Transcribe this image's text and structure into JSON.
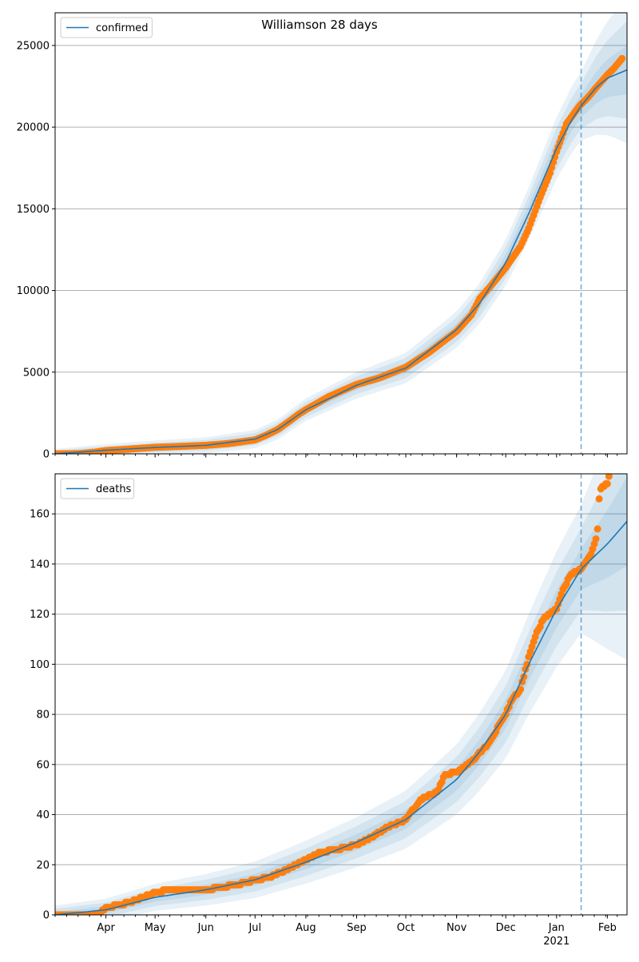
{
  "figure": {
    "title": "Williamson 28 days",
    "forecast_date": "2021-01-16",
    "colors": {
      "model": "#1f77b4",
      "observed": "#ff7f0e",
      "band": "#1f77b4",
      "grid": "#b0b0b0"
    },
    "x_axis": {
      "range": [
        "2020-03-01",
        "2021-02-13"
      ],
      "month_labels": [
        {
          "date": "2020-04-01",
          "label": "Apr"
        },
        {
          "date": "2020-05-01",
          "label": "May"
        },
        {
          "date": "2020-06-01",
          "label": "Jun"
        },
        {
          "date": "2020-07-01",
          "label": "Jul"
        },
        {
          "date": "2020-08-01",
          "label": "Aug"
        },
        {
          "date": "2020-09-01",
          "label": "Sep"
        },
        {
          "date": "2020-10-01",
          "label": "Oct"
        },
        {
          "date": "2020-11-01",
          "label": "Nov"
        },
        {
          "date": "2020-12-01",
          "label": "Dec"
        },
        {
          "date": "2021-01-01",
          "label": "Jan"
        },
        {
          "date": "2021-02-01",
          "label": "Feb"
        }
      ],
      "year_label": {
        "date": "2021-01-01",
        "label": "2021"
      }
    }
  },
  "chart_data": [
    {
      "type": "line",
      "legend": "confirmed",
      "legend_position": "top-left",
      "grid": "horizontal",
      "ylim": [
        0,
        27000
      ],
      "yticks": [
        0,
        5000,
        10000,
        15000,
        20000,
        25000
      ],
      "band_widths": [
        0.025,
        0.05,
        0.075
      ],
      "observed": [
        [
          "2020-03-01",
          0
        ],
        [
          "2020-03-15",
          10
        ],
        [
          "2020-03-25",
          100
        ],
        [
          "2020-04-01",
          200
        ],
        [
          "2020-04-15",
          290
        ],
        [
          "2020-05-01",
          400
        ],
        [
          "2020-05-15",
          450
        ],
        [
          "2020-06-01",
          520
        ],
        [
          "2020-06-15",
          630
        ],
        [
          "2020-07-01",
          850
        ],
        [
          "2020-07-08",
          1150
        ],
        [
          "2020-07-15",
          1500
        ],
        [
          "2020-07-22",
          2000
        ],
        [
          "2020-07-28",
          2450
        ],
        [
          "2020-08-01",
          2700
        ],
        [
          "2020-08-08",
          3100
        ],
        [
          "2020-08-15",
          3500
        ],
        [
          "2020-09-01",
          4250
        ],
        [
          "2020-09-15",
          4650
        ],
        [
          "2020-10-01",
          5300
        ],
        [
          "2020-10-15",
          6200
        ],
        [
          "2020-11-01",
          7500
        ],
        [
          "2020-11-10",
          8500
        ],
        [
          "2020-11-15",
          9500
        ],
        [
          "2020-11-22",
          10300
        ],
        [
          "2020-12-01",
          11400
        ],
        [
          "2020-12-10",
          12700
        ],
        [
          "2020-12-15",
          13800
        ],
        [
          "2020-12-22",
          15700
        ],
        [
          "2020-12-28",
          17200
        ],
        [
          "2021-01-01",
          18500
        ],
        [
          "2021-01-07",
          20200
        ],
        [
          "2021-01-15",
          21300
        ],
        [
          "2021-01-20",
          21800
        ],
        [
          "2021-01-25",
          22400
        ],
        [
          "2021-02-01",
          23200
        ],
        [
          "2021-02-05",
          23600
        ],
        [
          "2021-02-10",
          24200
        ]
      ],
      "model": [
        [
          "2020-03-01",
          0
        ],
        [
          "2020-04-01",
          220
        ],
        [
          "2020-05-01",
          390
        ],
        [
          "2020-06-01",
          520
        ],
        [
          "2020-07-01",
          900
        ],
        [
          "2020-07-15",
          1500
        ],
        [
          "2020-08-01",
          2700
        ],
        [
          "2020-09-01",
          4200
        ],
        [
          "2020-10-01",
          5250
        ],
        [
          "2020-11-01",
          7600
        ],
        [
          "2020-11-15",
          9200
        ],
        [
          "2020-12-01",
          11700
        ],
        [
          "2020-12-15",
          14700
        ],
        [
          "2021-01-01",
          18700
        ],
        [
          "2021-01-10",
          20400
        ],
        [
          "2021-01-16",
          21300
        ],
        [
          "2021-01-25",
          22400
        ],
        [
          "2021-02-01",
          23000
        ],
        [
          "2021-02-13",
          23500
        ]
      ]
    },
    {
      "type": "line",
      "legend": "deaths",
      "legend_position": "top-left",
      "grid": "horizontal",
      "ylim": [
        0,
        176
      ],
      "yticks": [
        0,
        20,
        40,
        60,
        80,
        100,
        120,
        140,
        160
      ],
      "band_widths": [
        0.045,
        0.09,
        0.14
      ],
      "observed": [
        [
          "2020-03-01",
          0
        ],
        [
          "2020-03-28",
          0
        ],
        [
          "2020-04-01",
          3
        ],
        [
          "2020-04-10",
          4
        ],
        [
          "2020-04-20",
          6
        ],
        [
          "2020-05-01",
          9
        ],
        [
          "2020-05-10",
          10
        ],
        [
          "2020-06-01",
          10
        ],
        [
          "2020-06-10",
          11
        ],
        [
          "2020-06-20",
          12
        ],
        [
          "2020-07-01",
          14
        ],
        [
          "2020-07-10",
          15
        ],
        [
          "2020-07-20",
          18
        ],
        [
          "2020-08-01",
          22
        ],
        [
          "2020-08-10",
          25
        ],
        [
          "2020-08-20",
          26
        ],
        [
          "2020-09-01",
          28
        ],
        [
          "2020-09-10",
          31
        ],
        [
          "2020-09-20",
          35
        ],
        [
          "2020-10-01",
          38
        ],
        [
          "2020-10-10",
          46
        ],
        [
          "2020-10-20",
          49
        ],
        [
          "2020-10-25",
          56
        ],
        [
          "2020-11-01",
          57
        ],
        [
          "2020-11-10",
          61
        ],
        [
          "2020-11-20",
          68
        ],
        [
          "2020-12-01",
          80
        ],
        [
          "2020-12-05",
          86
        ],
        [
          "2020-12-10",
          90
        ],
        [
          "2020-12-15",
          103
        ],
        [
          "2020-12-20",
          113
        ],
        [
          "2020-12-25",
          119
        ],
        [
          "2021-01-01",
          122
        ],
        [
          "2021-01-05",
          130
        ],
        [
          "2021-01-10",
          136
        ],
        [
          "2021-01-16",
          138
        ],
        [
          "2021-01-22",
          144
        ],
        [
          "2021-01-25",
          150
        ],
        [
          "2021-01-26",
          154
        ],
        [
          "2021-01-27",
          166
        ],
        [
          "2021-01-28",
          170
        ],
        [
          "2021-02-01",
          172
        ],
        [
          "2021-02-02",
          175
        ]
      ],
      "model": [
        [
          "2020-03-01",
          0
        ],
        [
          "2020-04-01",
          2
        ],
        [
          "2020-05-01",
          7
        ],
        [
          "2020-06-01",
          10
        ],
        [
          "2020-07-01",
          14
        ],
        [
          "2020-08-01",
          21
        ],
        [
          "2020-09-01",
          29
        ],
        [
          "2020-10-01",
          38
        ],
        [
          "2020-11-01",
          54
        ],
        [
          "2020-11-15",
          65
        ],
        [
          "2020-12-01",
          80
        ],
        [
          "2020-12-15",
          100
        ],
        [
          "2021-01-01",
          122
        ],
        [
          "2021-01-16",
          138
        ],
        [
          "2021-02-01",
          148
        ],
        [
          "2021-02-13",
          157
        ]
      ]
    }
  ]
}
